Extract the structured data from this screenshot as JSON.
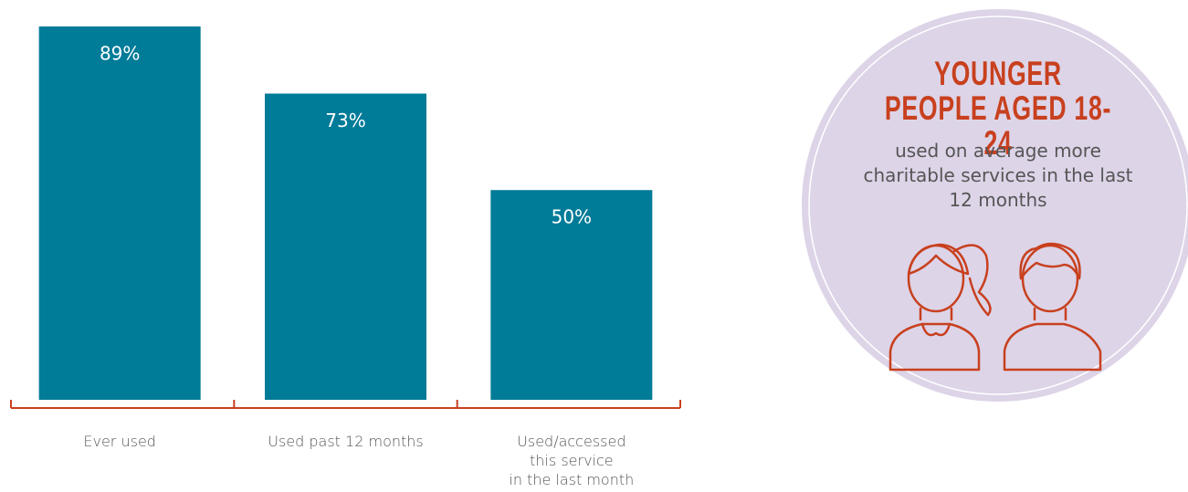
{
  "chart_data": {
    "type": "bar",
    "categories": [
      "Ever used",
      "Used past 12 months",
      "Used/accessed\nthis service\nin the last month"
    ],
    "values": [
      89,
      73,
      50
    ],
    "value_labels": [
      "89%",
      "73%",
      "50%"
    ],
    "color": "#007b98",
    "axis_color": "#c8401e",
    "ylim": [
      0,
      89
    ]
  },
  "callout": {
    "title": "YOUNGER PEOPLE AGED 18-24",
    "text": "used on average more charitable services in the last 12 months"
  }
}
